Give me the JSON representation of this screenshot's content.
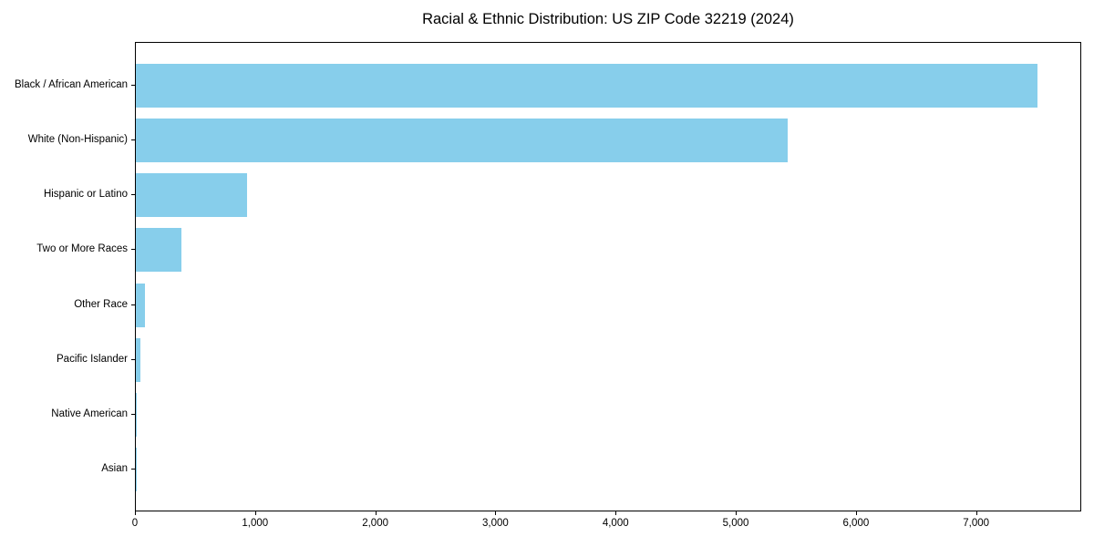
{
  "chart_data": {
    "type": "bar",
    "orientation": "horizontal",
    "title": "Racial & Ethnic Distribution: US ZIP Code 32219 (2024)",
    "categories": [
      "Black / African American",
      "White (Non-Hispanic)",
      "Hispanic or Latino",
      "Two or More Races",
      "Other Race",
      "Pacific Islander",
      "Native American",
      "Asian"
    ],
    "values": [
      7500,
      5425,
      925,
      380,
      75,
      35,
      8,
      5
    ],
    "xlabel": "",
    "ylabel": "",
    "x_tick_labels": [
      "0",
      "1,000",
      "2,000",
      "3,000",
      "4,000",
      "5,000",
      "6,000",
      "7,000"
    ],
    "x_tick_values": [
      0,
      1000,
      2000,
      3000,
      4000,
      5000,
      6000,
      7000
    ],
    "xlim": [
      0,
      7875
    ],
    "bar_color": "#87CEEB",
    "spine_color": "#000000",
    "background_color": "#FFFFFF",
    "grid": false,
    "legend_position": "none"
  }
}
